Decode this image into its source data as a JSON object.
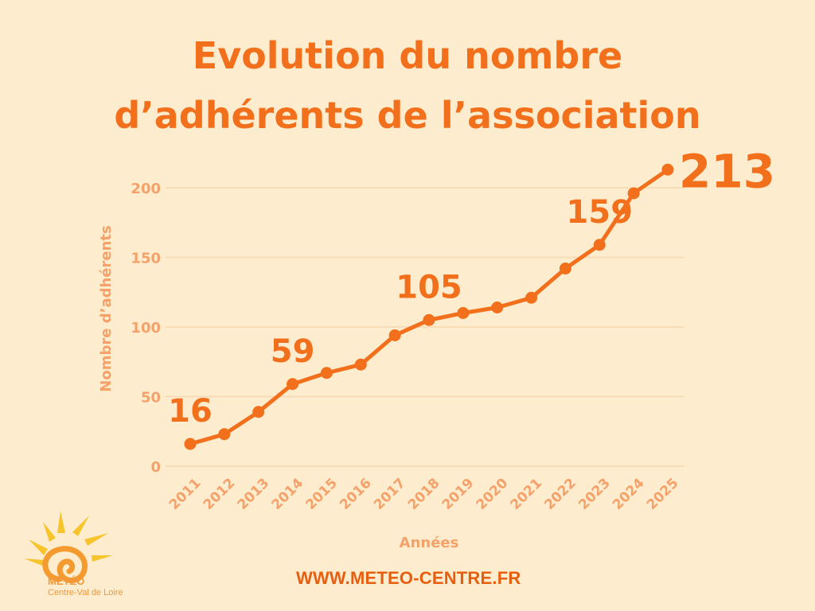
{
  "title_lines": [
    "Evolution du nombre",
    "d’adhérents de l’association"
  ],
  "footer_url": "WWW.METEO-CENTRE.FR",
  "logo": {
    "name": "MÉTÉO",
    "region": "Centre-Val de Loire"
  },
  "colors": {
    "background": "#fdeccd",
    "line": "#f26f1c",
    "axis_text": "#f4a26a",
    "grid": "#f7d8b2",
    "title": "#f26f1c"
  },
  "chart_data": {
    "type": "line",
    "xlabel": "Années",
    "ylabel": "Nombre d’adhérents",
    "ylim": [
      0,
      200
    ],
    "yticks": [
      0,
      50,
      100,
      150,
      200
    ],
    "grid": true,
    "categories": [
      "2011",
      "2012",
      "2013",
      "2014",
      "2015",
      "2016",
      "2017",
      "2018",
      "2019",
      "2020",
      "2021",
      "2022",
      "2023",
      "2024",
      "2025"
    ],
    "series": [
      {
        "values": [
          16,
          23,
          39,
          59,
          67,
          73,
          94,
          105,
          110,
          114,
          121,
          142,
          159,
          196,
          213
        ]
      }
    ],
    "annotations": [
      {
        "category": "2011",
        "text": "16"
      },
      {
        "category": "2014",
        "text": "59"
      },
      {
        "category": "2018",
        "text": "105"
      },
      {
        "category": "2023",
        "text": "159"
      },
      {
        "category": "2025",
        "text": "213"
      }
    ]
  }
}
